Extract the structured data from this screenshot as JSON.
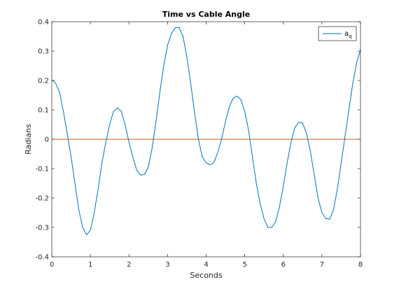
{
  "chart_data": {
    "type": "line",
    "title": "Time vs Cable Angle",
    "xlabel": "Seconds",
    "ylabel": "Radians",
    "xlim": [
      0,
      8
    ],
    "ylim": [
      -0.4,
      0.4
    ],
    "xticks": [
      "0",
      "1",
      "2",
      "3",
      "4",
      "5",
      "6",
      "7",
      "8"
    ],
    "yticks": [
      "-0.4",
      "-0.3",
      "-0.2",
      "-0.1",
      "0",
      "0.1",
      "0.2",
      "0.3",
      "0.4"
    ],
    "grid": false,
    "legend_position": "top-right",
    "legend_entry": {
      "main": "a",
      "sub": "q"
    },
    "series": [
      {
        "name": "a_q",
        "color": "#0072BD",
        "points": [
          [
            0.0,
            0.2
          ],
          [
            0.05,
            0.198
          ],
          [
            0.1,
            0.19
          ],
          [
            0.2,
            0.16
          ],
          [
            0.3,
            0.095
          ],
          [
            0.4,
            0.02
          ],
          [
            0.5,
            -0.06
          ],
          [
            0.6,
            -0.15
          ],
          [
            0.7,
            -0.24
          ],
          [
            0.8,
            -0.3
          ],
          [
            0.9,
            -0.325
          ],
          [
            1.0,
            -0.31
          ],
          [
            1.1,
            -0.25
          ],
          [
            1.2,
            -0.17
          ],
          [
            1.3,
            -0.08
          ],
          [
            1.4,
            -0.01
          ],
          [
            1.5,
            0.05
          ],
          [
            1.6,
            0.095
          ],
          [
            1.7,
            0.107
          ],
          [
            1.8,
            0.095
          ],
          [
            1.9,
            0.05
          ],
          [
            2.0,
            -0.01
          ],
          [
            2.1,
            -0.06
          ],
          [
            2.2,
            -0.105
          ],
          [
            2.3,
            -0.122
          ],
          [
            2.4,
            -0.12
          ],
          [
            2.5,
            -0.095
          ],
          [
            2.6,
            -0.03
          ],
          [
            2.7,
            0.06
          ],
          [
            2.8,
            0.16
          ],
          [
            2.9,
            0.25
          ],
          [
            3.0,
            0.32
          ],
          [
            3.1,
            0.36
          ],
          [
            3.2,
            0.38
          ],
          [
            3.3,
            0.38
          ],
          [
            3.4,
            0.35
          ],
          [
            3.5,
            0.28
          ],
          [
            3.6,
            0.19
          ],
          [
            3.7,
            0.09
          ],
          [
            3.8,
            0.0
          ],
          [
            3.9,
            -0.06
          ],
          [
            4.0,
            -0.08
          ],
          [
            4.1,
            -0.087
          ],
          [
            4.2,
            -0.08
          ],
          [
            4.3,
            -0.045
          ],
          [
            4.4,
            0.0
          ],
          [
            4.5,
            0.06
          ],
          [
            4.6,
            0.11
          ],
          [
            4.7,
            0.14
          ],
          [
            4.8,
            0.147
          ],
          [
            4.9,
            0.135
          ],
          [
            5.0,
            0.095
          ],
          [
            5.1,
            0.03
          ],
          [
            5.2,
            -0.06
          ],
          [
            5.3,
            -0.15
          ],
          [
            5.4,
            -0.22
          ],
          [
            5.5,
            -0.27
          ],
          [
            5.6,
            -0.3
          ],
          [
            5.7,
            -0.3
          ],
          [
            5.8,
            -0.28
          ],
          [
            5.9,
            -0.23
          ],
          [
            6.0,
            -0.16
          ],
          [
            6.1,
            -0.08
          ],
          [
            6.2,
            -0.01
          ],
          [
            6.3,
            0.04
          ],
          [
            6.4,
            0.058
          ],
          [
            6.5,
            0.055
          ],
          [
            6.6,
            0.02
          ],
          [
            6.7,
            -0.04
          ],
          [
            6.8,
            -0.12
          ],
          [
            6.9,
            -0.2
          ],
          [
            7.0,
            -0.25
          ],
          [
            7.1,
            -0.27
          ],
          [
            7.2,
            -0.272
          ],
          [
            7.3,
            -0.24
          ],
          [
            7.4,
            -0.17
          ],
          [
            7.5,
            -0.08
          ],
          [
            7.6,
            0.01
          ],
          [
            7.7,
            0.1
          ],
          [
            7.8,
            0.19
          ],
          [
            7.9,
            0.26
          ],
          [
            8.0,
            0.305
          ]
        ]
      },
      {
        "name": "",
        "color": "#D95319",
        "points": [
          [
            0,
            0
          ],
          [
            8,
            0
          ]
        ]
      }
    ]
  }
}
